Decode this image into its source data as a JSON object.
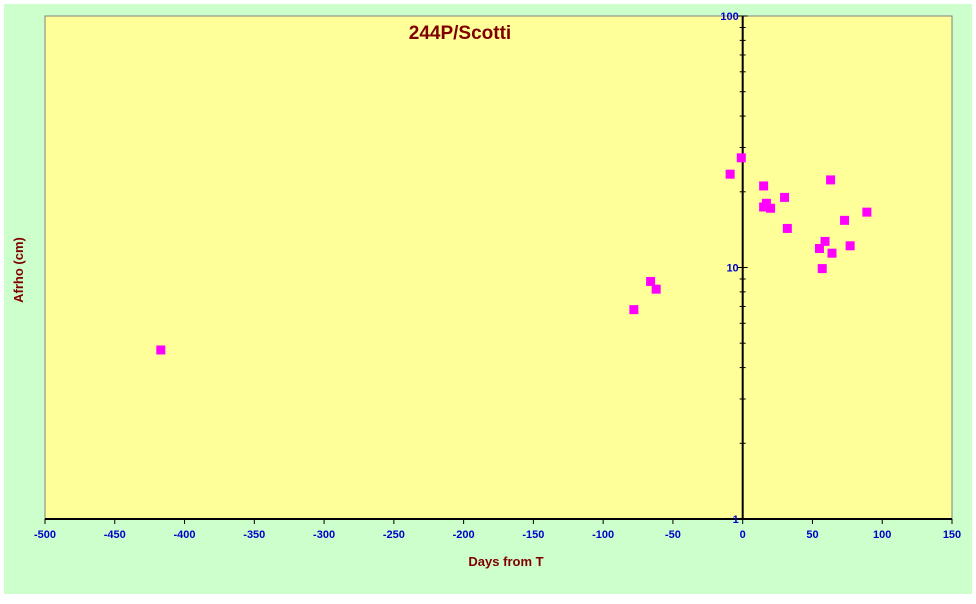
{
  "colors": {
    "outer_background": "#ccffcc",
    "plot_background": "#ffff99",
    "axis": "#000000",
    "tick_label": "#0000cc",
    "title": "#800000",
    "marker": "#ff00ff"
  },
  "chart_data": {
    "type": "scatter",
    "title": "244P/Scotti",
    "xlabel": "Days from  T",
    "ylabel": "Afrho (cm)",
    "xlim": [
      -500,
      150
    ],
    "ylim": [
      1,
      100
    ],
    "yscale": "log",
    "grid": false,
    "legend": "none",
    "x_ticks": [
      -500,
      -450,
      -400,
      -350,
      -300,
      -250,
      -200,
      -150,
      -100,
      -50,
      0,
      50,
      100,
      150
    ],
    "x_tick_labels": [
      "-500",
      "-450",
      "-400",
      "-350",
      "-300",
      "-250",
      "-200",
      "-150",
      "-100",
      "-50",
      "0",
      "50",
      "100",
      "150"
    ],
    "y_ticks": [
      1,
      10,
      100
    ],
    "y_tick_labels": [
      "1",
      "10",
      "100"
    ],
    "marker": "square",
    "points": [
      {
        "x": -417,
        "y": 4.7
      },
      {
        "x": -78,
        "y": 6.8
      },
      {
        "x": -66,
        "y": 8.8
      },
      {
        "x": -62,
        "y": 8.2
      },
      {
        "x": -9,
        "y": 23.5
      },
      {
        "x": -1,
        "y": 27.3
      },
      {
        "x": 15,
        "y": 21.1
      },
      {
        "x": 15,
        "y": 17.4
      },
      {
        "x": 17,
        "y": 18.0
      },
      {
        "x": 20,
        "y": 17.2
      },
      {
        "x": 30,
        "y": 19.0
      },
      {
        "x": 32,
        "y": 14.3
      },
      {
        "x": 55,
        "y": 11.9
      },
      {
        "x": 57,
        "y": 9.9
      },
      {
        "x": 59,
        "y": 12.7
      },
      {
        "x": 63,
        "y": 22.3
      },
      {
        "x": 64,
        "y": 11.4
      },
      {
        "x": 73,
        "y": 15.4
      },
      {
        "x": 77,
        "y": 12.2
      },
      {
        "x": 89,
        "y": 16.6
      }
    ]
  }
}
